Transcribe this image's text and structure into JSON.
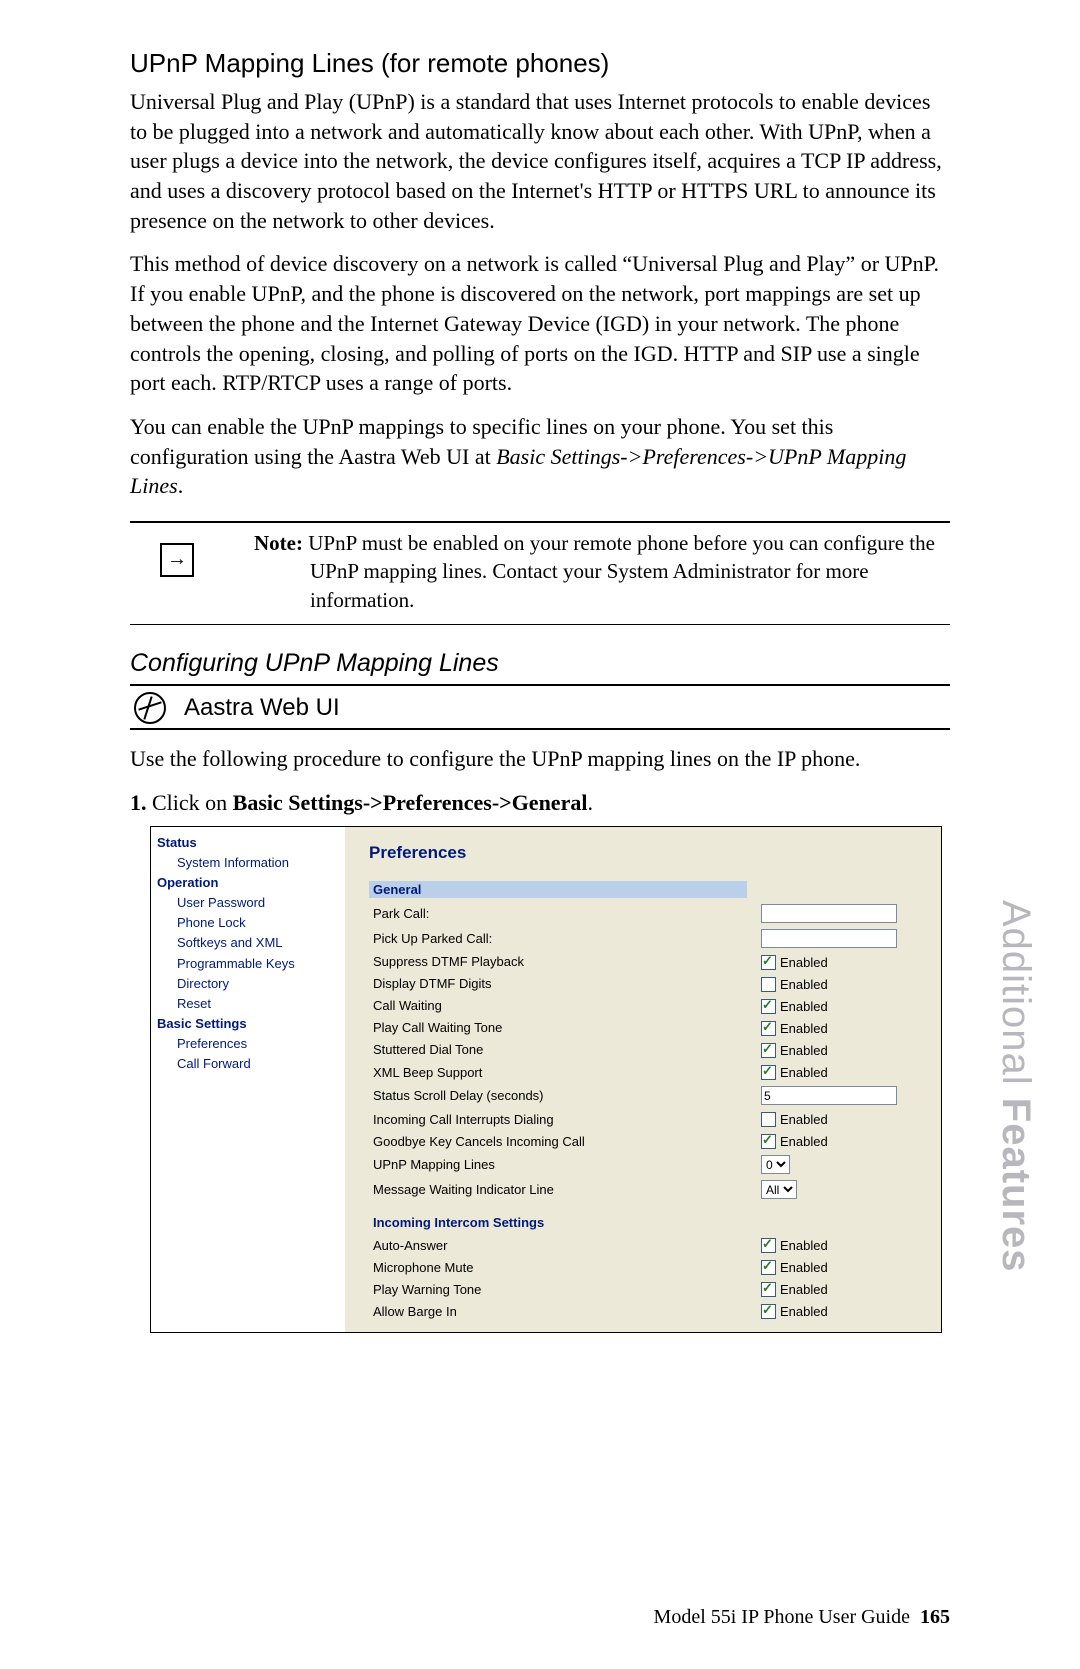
{
  "page": {
    "heading": "UPnP Mapping Lines (for remote phones)",
    "para1": "Universal Plug and Play (UPnP) is a standard that uses Internet protocols to enable devices to be plugged into a network and automatically know about each other. With UPnP, when a user plugs a device into the network, the device configures itself, acquires a TCP IP address, and uses a discovery protocol based on the Internet's HTTP or HTTPS URL to announce its presence on the network to other devices.",
    "para2": "This method of device discovery on a network is called “Universal Plug and Play” or UPnP. If you enable UPnP, and the phone is discovered on the network, port mappings are set up between the phone and the Internet Gateway Device (IGD) in your network. The phone controls the opening, closing, and polling of ports on the IGD. HTTP and SIP use a single port each. RTP/RTCP uses a range of ports.",
    "para3a": "You can enable the UPnP mappings to specific lines on your phone. You set this configuration using the Aastra Web UI at ",
    "para3b": "Basic Settings->Preferences->UPnP Mapping Lines",
    "para3c": ".",
    "noteLabel": "Note: ",
    "noteText": "UPnP must be enabled on your remote phone before you can configure the UPnP mapping lines. Contact your System Administrator for more information.",
    "h2": "Configuring UPnP Mapping Lines",
    "webuiLabel": "Aastra Web UI",
    "procIntro": "Use the following procedure to configure the UPnP mapping lines on the IP phone.",
    "stepNum": "1.",
    "stepTextA": "Click on ",
    "stepTextB": "Basic Settings->Preferences->General",
    "stepTextC": "."
  },
  "sidebar": {
    "groups": [
      {
        "head": "Status",
        "items": [
          "System Information"
        ]
      },
      {
        "head": "Operation",
        "items": [
          "User Password",
          "Phone Lock",
          "Softkeys and XML",
          "Programmable Keys",
          "Directory",
          "Reset"
        ]
      },
      {
        "head": "Basic Settings",
        "items": [
          "Preferences",
          "Call Forward"
        ]
      }
    ]
  },
  "prefs": {
    "title": "Preferences",
    "section1": "General",
    "rows1": [
      {
        "label": "Park Call:",
        "type": "text",
        "value": ""
      },
      {
        "label": "Pick Up Parked Call:",
        "type": "text",
        "value": ""
      },
      {
        "label": "Suppress DTMF Playback",
        "type": "check",
        "checked": true
      },
      {
        "label": "Display DTMF Digits",
        "type": "check",
        "checked": false
      },
      {
        "label": "Call Waiting",
        "type": "check",
        "checked": true
      },
      {
        "label": "Play Call Waiting Tone",
        "type": "check",
        "checked": true
      },
      {
        "label": "Stuttered Dial Tone",
        "type": "check",
        "checked": true
      },
      {
        "label": "XML Beep Support",
        "type": "check",
        "checked": true
      },
      {
        "label": "Status Scroll Delay (seconds)",
        "type": "text",
        "value": "5"
      },
      {
        "label": "Incoming Call Interrupts Dialing",
        "type": "check",
        "checked": false
      },
      {
        "label": "Goodbye Key Cancels Incoming Call",
        "type": "check",
        "checked": true
      },
      {
        "label": "UPnP Mapping Lines",
        "type": "select",
        "value": "0"
      },
      {
        "label": "Message Waiting Indicator Line",
        "type": "select",
        "value": "All"
      }
    ],
    "section2": "Incoming Intercom Settings",
    "rows2": [
      {
        "label": "Auto-Answer",
        "type": "check",
        "checked": true
      },
      {
        "label": "Microphone Mute",
        "type": "check",
        "checked": true
      },
      {
        "label": "Play Warning Tone",
        "type": "check",
        "checked": true
      },
      {
        "label": "Allow Barge In",
        "type": "check",
        "checked": true
      }
    ],
    "enabledLabel": "Enabled"
  },
  "sideTab": {
    "a": "Additional ",
    "b": "Features"
  },
  "footer": {
    "text": "Model 55i IP Phone User Guide",
    "page": "165"
  }
}
